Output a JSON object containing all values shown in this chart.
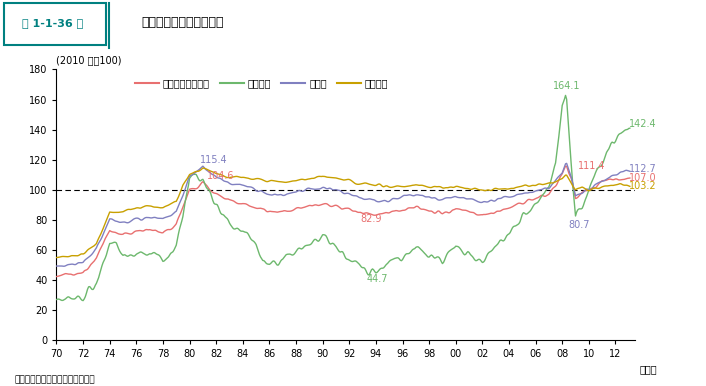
{
  "header_num": "第 1-1-36 図",
  "header_title": "企業物価指数の長期推移",
  "ylabel": "(2010 年＝100)",
  "xlabel": "（年）",
  "source": "資料：日本銀行「企業物価指数」",
  "ylim": [
    0,
    180
  ],
  "yticks": [
    0,
    20,
    40,
    60,
    80,
    100,
    120,
    140,
    160,
    180
  ],
  "xlabels": [
    "70",
    "72",
    "74",
    "76",
    "78",
    "80",
    "82",
    "84",
    "86",
    "88",
    "90",
    "92",
    "94",
    "96",
    "98",
    "00",
    "02",
    "04",
    "06",
    "08",
    "10",
    "12"
  ],
  "colors": {
    "soZai_chuukan": "#E87070",
    "soZai": "#6DB86D",
    "chuukan": "#8080C0",
    "kougyou": "#C8A000"
  },
  "legend_labels": [
    "素原材料＋中間財",
    "素原材料",
    "中間財",
    "工業製品"
  ],
  "dashed_line_y": 100,
  "header_box_color": "#008080",
  "header_line_color": "#008080"
}
